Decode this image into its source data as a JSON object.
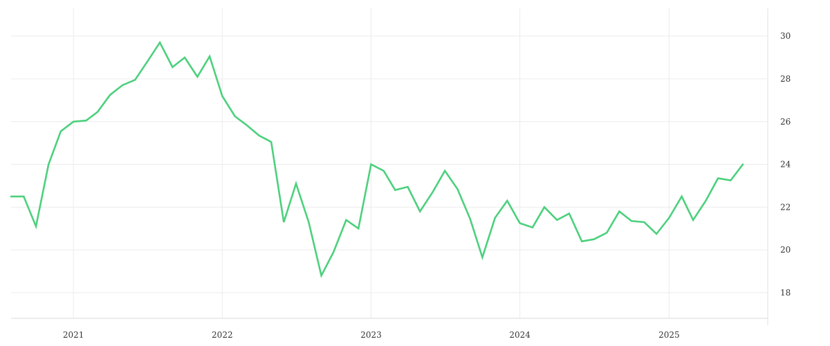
{
  "chart_data": {
    "type": "line",
    "title": "",
    "xlabel": "",
    "ylabel": "",
    "y_axis_position": "right",
    "grid": true,
    "legend": "none",
    "xlim": [
      "2020-08-01",
      "2025-08-31"
    ],
    "ylim": [
      16.8,
      31.3
    ],
    "x_ticks": [
      "2021-01-01",
      "2022-01-01",
      "2023-01-01",
      "2024-01-01",
      "2025-01-01"
    ],
    "x_tick_labels": [
      "2021",
      "2022",
      "2023",
      "2024",
      "2025"
    ],
    "y_ticks": [
      18,
      20,
      22,
      24,
      26,
      28,
      30
    ],
    "y_tick_labels": [
      "18",
      "20",
      "22",
      "24",
      "26",
      "28",
      "30"
    ],
    "series": [
      {
        "color": "#4cd07d",
        "x": [
          "2020-08",
          "2020-09",
          "2020-10",
          "2020-11",
          "2020-12",
          "2021-01",
          "2021-02",
          "2021-03",
          "2021-04",
          "2021-05",
          "2021-06",
          "2021-07",
          "2021-08",
          "2021-09",
          "2021-10",
          "2021-11",
          "2021-12",
          "2022-01",
          "2022-02",
          "2022-03",
          "2022-04",
          "2022-05",
          "2022-06",
          "2022-07",
          "2022-08",
          "2022-09",
          "2022-10",
          "2022-11",
          "2022-12",
          "2023-01",
          "2023-02",
          "2023-03",
          "2023-04",
          "2023-05",
          "2023-06",
          "2023-07",
          "2023-08",
          "2023-09",
          "2023-10",
          "2023-11",
          "2023-12",
          "2024-01",
          "2024-02",
          "2024-03",
          "2024-04",
          "2024-05",
          "2024-06",
          "2024-07",
          "2024-08",
          "2024-09",
          "2024-10",
          "2024-11",
          "2024-12",
          "2025-01",
          "2025-02",
          "2025-03",
          "2025-04",
          "2025-05",
          "2025-06",
          "2025-07"
        ],
        "values": [
          22.5,
          22.5,
          21.1,
          24.0,
          25.55,
          26.0,
          26.05,
          26.45,
          27.25,
          27.7,
          27.95,
          28.8,
          29.7,
          28.55,
          29.0,
          28.1,
          29.05,
          27.2,
          26.25,
          25.85,
          25.35,
          25.05,
          21.3,
          23.1,
          21.3,
          18.8,
          19.9,
          21.4,
          21.0,
          24.0,
          23.7,
          22.8,
          22.95,
          21.8,
          22.7,
          23.7,
          22.85,
          21.45,
          19.65,
          21.5,
          22.3,
          21.25,
          21.05,
          22.0,
          21.4,
          21.7,
          20.4,
          20.5,
          20.8,
          21.8,
          21.35,
          21.3,
          20.75,
          21.5,
          22.5,
          21.4,
          22.3,
          23.35,
          23.25,
          24.0
        ]
      }
    ]
  }
}
